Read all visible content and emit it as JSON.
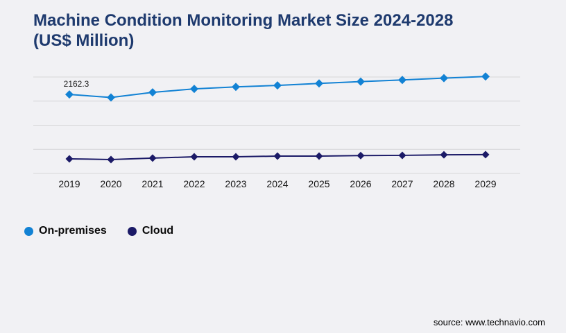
{
  "page": {
    "background": "#f1f1f4"
  },
  "header": {
    "lines": [
      "Machine Condition Monitoring Market Size 2024-2028",
      "(US$ Million)"
    ],
    "color": "#1e3a6e"
  },
  "legend": {
    "items": [
      {
        "label": "On-premises",
        "color": "#1282d4"
      },
      {
        "label": "Cloud",
        "color": "#1b1a67"
      }
    ]
  },
  "footer": {
    "source": "source: www.technavio.com"
  },
  "chart_data": {
    "type": "line",
    "title": "Machine Condition Monitoring Market Size 2024-2028 (US$ Million)",
    "x": [
      2019,
      2020,
      2021,
      2022,
      2023,
      2024,
      2025,
      2026,
      2027,
      2028,
      2029
    ],
    "series": [
      {
        "name": "On-premises",
        "color": "#1282d4",
        "marker": "diamond",
        "values": [
          2162.3,
          2080,
          2220,
          2315,
          2370,
          2410,
          2465,
          2515,
          2560,
          2610,
          2655
        ]
      },
      {
        "name": "Cloud",
        "color": "#1b1a67",
        "marker": "diamond",
        "values": [
          400,
          380,
          420,
          455,
          455,
          475,
          475,
          490,
          495,
          510,
          515
        ]
      }
    ],
    "annotations": [
      {
        "series": "On-premises",
        "x": 2019,
        "text": "2162.3"
      }
    ],
    "ylim": [
      0,
      2640
    ],
    "grid": "horizontal",
    "gridline_count": 5,
    "gridline_color": "#d6d6d8",
    "axis_label_color": "#161616",
    "y_axis_visible": false,
    "legend_position": "bottom-left"
  }
}
